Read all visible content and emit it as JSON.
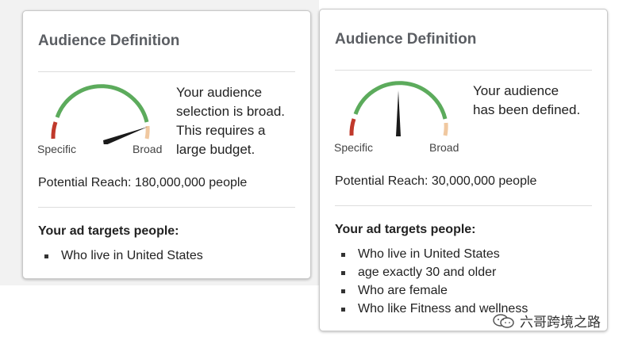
{
  "left_card": {
    "title": "Audience Definition",
    "gauge": {
      "label_left": "Specific",
      "label_right": "Broad"
    },
    "description_lines": [
      "Your audience",
      "selection is broad.",
      "This requires a",
      "large budget."
    ],
    "reach": "Potential Reach: 180,000,000 people",
    "targets_heading": "Your ad targets people:",
    "targets": [
      "Who live in United States"
    ]
  },
  "right_card": {
    "title": "Audience Definition",
    "gauge": {
      "label_left": "Specific",
      "label_right": "Broad"
    },
    "description_lines": [
      "Your audience",
      "has been defined."
    ],
    "reach": "Potential Reach: 30,000,000 people",
    "targets_heading": "Your ad targets people:",
    "targets": [
      "Who live in United States",
      "age exactly 30 and older",
      "Who are female",
      "Who like Fitness and wellness"
    ]
  },
  "watermark": {
    "text": "六哥跨境之路",
    "icon": "wechat-icon"
  },
  "colors": {
    "gauge_red": "#c0392b",
    "gauge_green": "#5cab5c",
    "gauge_peach": "#f0c8a0",
    "needle": "#1a1a1a"
  }
}
